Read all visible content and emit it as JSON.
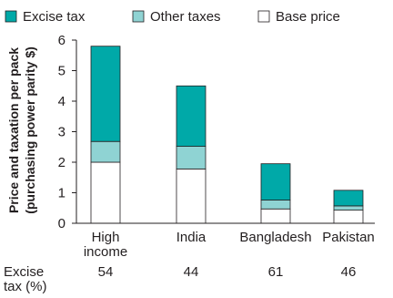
{
  "chart_data": {
    "type": "bar",
    "stacked": true,
    "categories": [
      [
        "High",
        "income"
      ],
      [
        "India"
      ],
      [
        "Bangladesh"
      ],
      [
        "Pakistan"
      ]
    ],
    "series": [
      {
        "name": "Base price",
        "color": "#ffffff",
        "values": [
          2.0,
          1.78,
          0.47,
          0.43
        ]
      },
      {
        "name": "Other taxes",
        "color": "#8fd3d3",
        "values": [
          0.68,
          0.74,
          0.29,
          0.14
        ]
      },
      {
        "name": "Excise tax",
        "color": "#00a9a8",
        "values": [
          3.12,
          1.98,
          1.19,
          0.51
        ]
      }
    ],
    "legend_order": [
      "Excise tax",
      "Other taxes",
      "Base price"
    ],
    "legend_position": "top",
    "ylabel": [
      "Price and taxation per pack",
      "(purchasing power parity $)"
    ],
    "ylim": [
      0,
      6
    ],
    "yticks": [
      0,
      1,
      2,
      3,
      4,
      5,
      6
    ],
    "grid": false,
    "excise_row": {
      "label": [
        "Excise",
        "tax (%)"
      ],
      "values": [
        "54",
        "44",
        "61",
        "46"
      ]
    }
  }
}
